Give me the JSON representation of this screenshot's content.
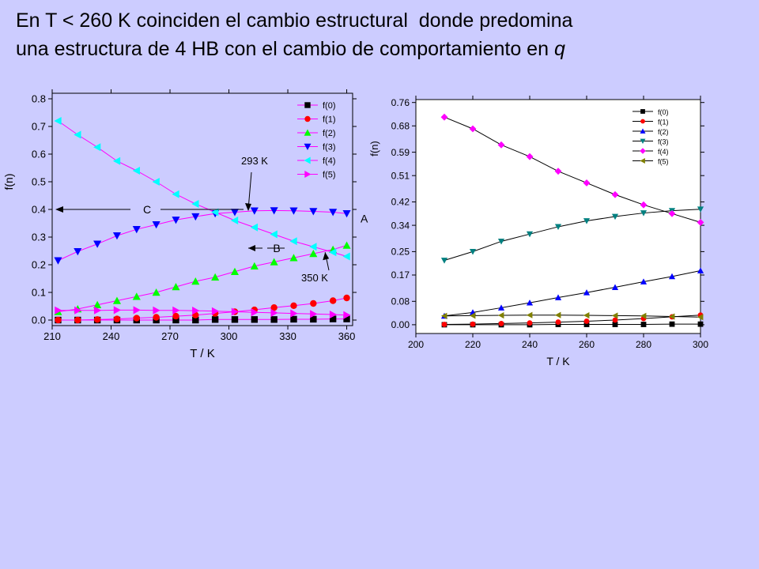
{
  "title": {
    "line1": "En T < 260 K coinciden el cambio estructural  donde predomina",
    "line2_prefix": "una estructura de 4 HB con el cambio de comportamiento en ",
    "line2_var": "q"
  },
  "colors": {
    "background": "#ccccff",
    "series": [
      "#000000",
      "#ff0000",
      "#00ff00",
      "#0000ff",
      "#00ffff",
      "#ff00ff"
    ],
    "right_series": [
      "#000000",
      "#ff0000",
      "#0000ff",
      "#008080",
      "#ff00ff",
      "#808000"
    ],
    "left_line": "#ff00ff",
    "right_line": "#000000"
  },
  "chart_data": [
    {
      "type": "line",
      "title": "",
      "xlabel": "T / K",
      "ylabel": "f(n)",
      "xlim": [
        210,
        363
      ],
      "ylim": [
        -0.02,
        0.82
      ],
      "xticks": [
        "210",
        "240",
        "270",
        "300",
        "330",
        "360"
      ],
      "yticks": [
        "0.0",
        "0.1",
        "0.2",
        "0.3",
        "0.4",
        "0.5",
        "0.6",
        "0.7",
        "0.8"
      ],
      "grid": false,
      "legend_position": "top-right",
      "x": [
        213,
        223,
        233,
        243,
        253,
        263,
        273,
        283,
        293,
        303,
        313,
        323,
        333,
        343,
        353,
        360
      ],
      "series": [
        {
          "name": "f(0)",
          "marker": "square",
          "values": [
            0.0,
            0.0,
            0.0,
            0.0,
            0.0,
            0.0,
            0.0,
            0.0,
            0.002,
            0.002,
            0.002,
            0.002,
            0.003,
            0.003,
            0.004,
            0.004
          ]
        },
        {
          "name": "f(1)",
          "marker": "circle",
          "values": [
            0.0,
            0.0,
            0.002,
            0.004,
            0.007,
            0.01,
            0.014,
            0.018,
            0.024,
            0.03,
            0.037,
            0.045,
            0.052,
            0.06,
            0.07,
            0.08
          ]
        },
        {
          "name": "f(2)",
          "marker": "triangle-up",
          "values": [
            0.03,
            0.04,
            0.055,
            0.07,
            0.085,
            0.1,
            0.12,
            0.14,
            0.155,
            0.175,
            0.195,
            0.21,
            0.225,
            0.24,
            0.255,
            0.27
          ]
        },
        {
          "name": "f(3)",
          "marker": "triangle-down",
          "values": [
            0.215,
            0.248,
            0.275,
            0.305,
            0.328,
            0.345,
            0.362,
            0.374,
            0.385,
            0.39,
            0.395,
            0.396,
            0.395,
            0.393,
            0.39,
            0.385
          ]
        },
        {
          "name": "f(4)",
          "marker": "triangle-left",
          "values": [
            0.72,
            0.67,
            0.625,
            0.575,
            0.54,
            0.5,
            0.455,
            0.42,
            0.39,
            0.36,
            0.335,
            0.31,
            0.285,
            0.265,
            0.245,
            0.23
          ]
        },
        {
          "name": "f(5)",
          "marker": "triangle-right",
          "values": [
            0.035,
            0.035,
            0.035,
            0.036,
            0.036,
            0.035,
            0.035,
            0.034,
            0.032,
            0.03,
            0.028,
            0.026,
            0.024,
            0.022,
            0.02,
            0.018
          ]
        }
      ],
      "annotations": [
        {
          "text": "293 K",
          "x": 293,
          "y": 0.39
        },
        {
          "text": "350 K",
          "x": 349,
          "y": 0.25
        },
        {
          "text": "C",
          "x": 237,
          "y": 0.4
        },
        {
          "text": "B",
          "x": 306,
          "y": 0.26
        },
        {
          "text": "A",
          "x": 364,
          "y": 0.33
        }
      ]
    },
    {
      "type": "line",
      "title": "",
      "xlabel": "T / K",
      "ylabel": "f(n)",
      "xlim": [
        200,
        300
      ],
      "ylim": [
        -0.03,
        0.77
      ],
      "xticks": [
        "200",
        "220",
        "240",
        "260",
        "280",
        "300"
      ],
      "yticks": [
        "0.00",
        "0.08",
        "0.17",
        "0.25",
        "0.34",
        "0.42",
        "0.51",
        "0.59",
        "0.68",
        "0.76"
      ],
      "grid": false,
      "legend_position": "top-right",
      "x": [
        210,
        220,
        230,
        240,
        250,
        260,
        270,
        280,
        290,
        300
      ],
      "series": [
        {
          "name": "f(0)",
          "marker": "square",
          "values": [
            0.0,
            0.0,
            0.0,
            0.0,
            0.001,
            0.001,
            0.001,
            0.001,
            0.002,
            0.002
          ]
        },
        {
          "name": "f(1)",
          "marker": "circle",
          "values": [
            0.001,
            0.002,
            0.004,
            0.006,
            0.009,
            0.012,
            0.016,
            0.021,
            0.027,
            0.033
          ]
        },
        {
          "name": "f(2)",
          "marker": "triangle-up",
          "values": [
            0.03,
            0.042,
            0.058,
            0.075,
            0.093,
            0.11,
            0.128,
            0.147,
            0.165,
            0.185
          ]
        },
        {
          "name": "f(3)",
          "marker": "triangle-down",
          "values": [
            0.22,
            0.25,
            0.285,
            0.31,
            0.335,
            0.355,
            0.37,
            0.382,
            0.39,
            0.395
          ]
        },
        {
          "name": "f(4)",
          "marker": "diamond",
          "values": [
            0.71,
            0.67,
            0.615,
            0.575,
            0.525,
            0.485,
            0.445,
            0.41,
            0.38,
            0.35
          ]
        },
        {
          "name": "f(5)",
          "marker": "triangle-left",
          "values": [
            0.03,
            0.031,
            0.032,
            0.033,
            0.033,
            0.032,
            0.031,
            0.03,
            0.028,
            0.026
          ]
        }
      ]
    }
  ]
}
